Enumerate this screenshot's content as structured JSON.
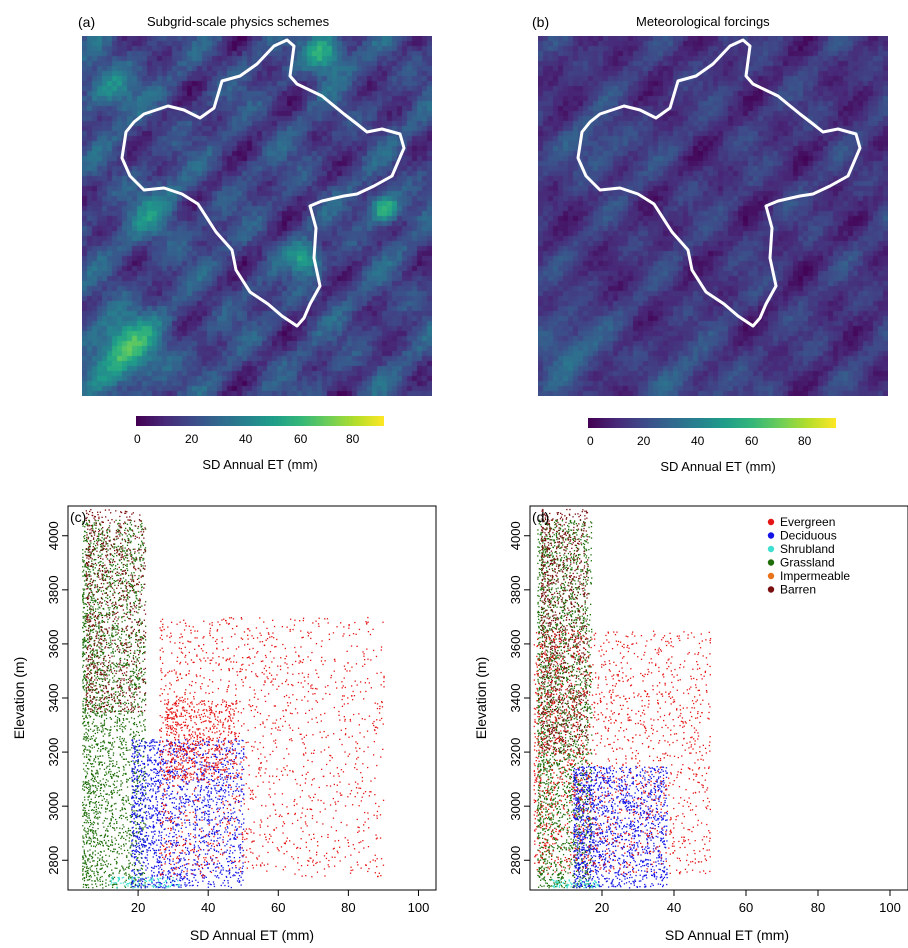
{
  "chart_data": [
    {
      "panel": "(a)",
      "type": "heatmap",
      "title": "Subgrid-scale physics schemes",
      "colorbar": {
        "label": "SD Annual ET (mm)",
        "ticks": [
          "0",
          "20",
          "40",
          "60",
          "80"
        ],
        "range": [
          0,
          92
        ],
        "colormap": "viridis"
      }
    },
    {
      "panel": "(b)",
      "type": "heatmap",
      "title": "Meteorological forcings",
      "colorbar": {
        "label": "SD Annual ET (mm)",
        "ticks": [
          "0",
          "20",
          "40",
          "60",
          "80"
        ],
        "range": [
          0,
          92
        ],
        "colormap": "viridis"
      }
    },
    {
      "panel": "(c)",
      "type": "scatter",
      "xlabel": "SD Annual ET (mm)",
      "ylabel": "Elevation (m)",
      "xlim": [
        0,
        105
      ],
      "ylim": [
        2690,
        4110
      ],
      "xticks": [
        "20",
        "40",
        "60",
        "80",
        "100"
      ],
      "yticks": [
        "2800",
        "3000",
        "3200",
        "3400",
        "3600",
        "3800",
        "4000"
      ],
      "series": [
        {
          "name": "Grassland",
          "color": "#1f6e0a",
          "clusters": [
            {
              "x": [
                4,
                22
              ],
              "y": [
                2700,
                4060
              ],
              "n": 2600
            }
          ]
        },
        {
          "name": "Barren",
          "color": "#7a0f0f",
          "clusters": [
            {
              "x": [
                5,
                22
              ],
              "y": [
                3350,
                4100
              ],
              "n": 900
            }
          ]
        },
        {
          "name": "Shrubland",
          "color": "#40e0d0",
          "clusters": [
            {
              "x": [
                12,
                32
              ],
              "y": [
                2700,
                2740
              ],
              "n": 120
            }
          ]
        },
        {
          "name": "Deciduous",
          "color": "#1414e6",
          "clusters": [
            {
              "x": [
                18,
                50
              ],
              "y": [
                2700,
                3250
              ],
              "n": 1700
            }
          ]
        },
        {
          "name": "Evergreen",
          "color": "#e61414",
          "clusters": [
            {
              "x": [
                26,
                90
              ],
              "y": [
                2740,
                3700
              ],
              "n": 1600
            },
            {
              "x": [
                28,
                48
              ],
              "y": [
                3100,
                3400
              ],
              "n": 500
            }
          ]
        }
      ]
    },
    {
      "panel": "(d)",
      "type": "scatter",
      "xlabel": "SD Annual ET (mm)",
      "ylabel": "Elevation (m)",
      "xlim": [
        0,
        105
      ],
      "ylim": [
        2690,
        4110
      ],
      "xticks": [
        "20",
        "40",
        "60",
        "80",
        "100"
      ],
      "yticks": [
        "2800",
        "3000",
        "3200",
        "3400",
        "3600",
        "3800",
        "4000"
      ],
      "legend": {
        "position": "top-right",
        "entries": [
          "Evergreen",
          "Deciduous",
          "Shrubland",
          "Grassland",
          "Impermeable",
          "Barren"
        ]
      },
      "series": [
        {
          "name": "Grassland",
          "color": "#1f6e0a",
          "clusters": [
            {
              "x": [
                2,
                17
              ],
              "y": [
                2700,
                4060
              ],
              "n": 2400
            }
          ]
        },
        {
          "name": "Barren",
          "color": "#7a0f0f",
          "clusters": [
            {
              "x": [
                3,
                16
              ],
              "y": [
                3200,
                4100
              ],
              "n": 1100
            }
          ]
        },
        {
          "name": "Shrubland",
          "color": "#40e0d0",
          "clusters": [
            {
              "x": [
                6,
                20
              ],
              "y": [
                2700,
                2730
              ],
              "n": 80
            }
          ]
        },
        {
          "name": "Deciduous",
          "color": "#1414e6",
          "clusters": [
            {
              "x": [
                12,
                38
              ],
              "y": [
                2700,
                3150
              ],
              "n": 1500
            }
          ]
        },
        {
          "name": "Evergreen",
          "color": "#e61414",
          "clusters": [
            {
              "x": [
                1,
                50
              ],
              "y": [
                2750,
                3650
              ],
              "n": 1700
            }
          ]
        },
        {
          "name": "Impermeable",
          "color": "#e8731a",
          "clusters": []
        }
      ]
    }
  ],
  "legend_colors": {
    "Evergreen": "#e61414",
    "Deciduous": "#1414e6",
    "Shrubland": "#40e0d0",
    "Grassland": "#1f6e0a",
    "Impermeable": "#e8731a",
    "Barren": "#7a0f0f"
  }
}
